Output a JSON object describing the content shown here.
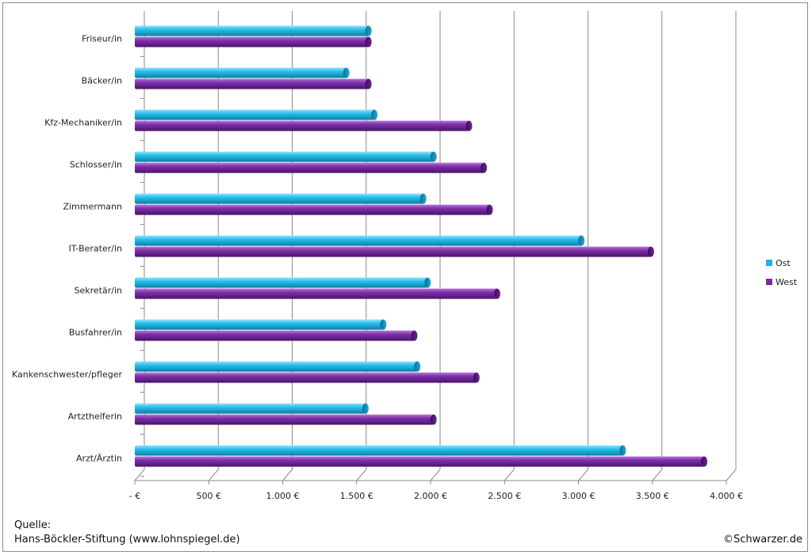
{
  "chart_data": {
    "type": "bar",
    "orientation": "horizontal",
    "categories": [
      "Friseur/in",
      "Bäcker/in",
      "Kfz-Mechaniker/in",
      "Schlosser/in",
      "Zimmermann",
      "IT-Berater/in",
      "Sekretär/in",
      "Busfahrer/in",
      "Kankenschwester/pfleger",
      "Artzthelferin",
      "Arzt/Ärztin"
    ],
    "series": [
      {
        "name": "Ost",
        "color": "#1fb3df",
        "values": [
          1580,
          1430,
          1620,
          2020,
          1950,
          3020,
          1980,
          1680,
          1910,
          1560,
          3300
        ]
      },
      {
        "name": "West",
        "color": "#7a2ca6",
        "values": [
          1580,
          1580,
          2260,
          2360,
          2400,
          3490,
          2450,
          1890,
          2310,
          2020,
          3850
        ]
      }
    ],
    "xlim": [
      0,
      4000
    ],
    "xticks": [
      0,
      500,
      1000,
      1500,
      2000,
      2500,
      3000,
      3500,
      4000
    ],
    "xtick_labels": [
      "-  €",
      "500 €",
      "1.000 €",
      "1.500 €",
      "2.000 €",
      "2.500 €",
      "3.000 €",
      "3.500 €",
      "4.000 €"
    ],
    "grid": true,
    "legend_position": "right"
  },
  "footer": {
    "source_label": "Quelle:",
    "source_text": "Hans-Böckler-Stiftung (www.lohnspiegel.de)",
    "copyright": "©Schwarzer.de"
  }
}
